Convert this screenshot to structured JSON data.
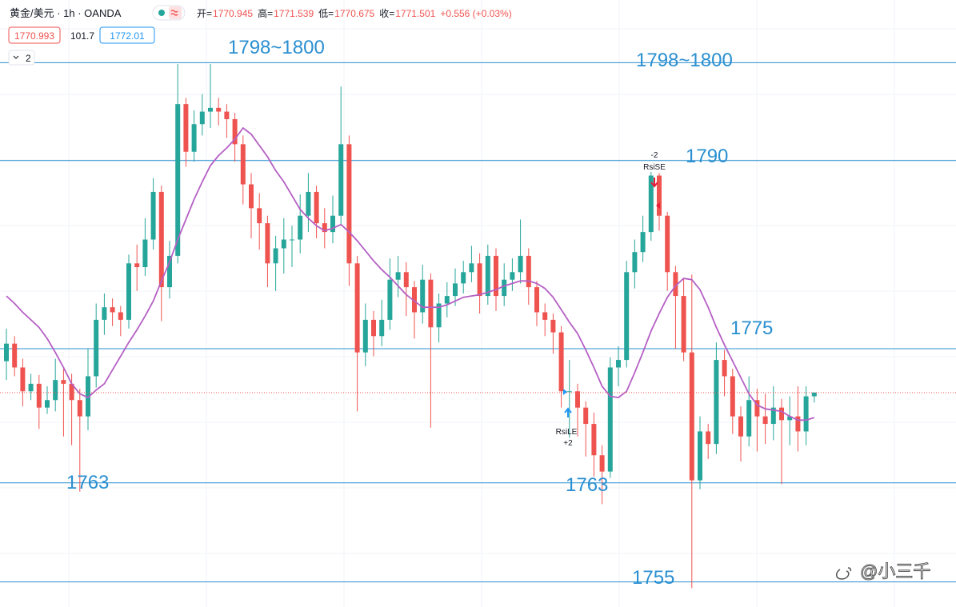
{
  "header": {
    "symbol": "黄金/美元 · 1h · OANDA",
    "ohlc": [
      {
        "label": "开=",
        "value": 1770.945
      },
      {
        "label": "高=",
        "value": 1771.539
      },
      {
        "label": "低=",
        "value": 1770.675
      },
      {
        "label": "收=",
        "value": 1771.501
      }
    ],
    "change": "+0.556 (+0.03%)",
    "bid": 1770.993,
    "spread": 101.7,
    "ask": 1772.01,
    "indicators_count": 2
  },
  "chart_data": {
    "type": "candlestick",
    "ylim": [
      1754.4,
      1802.8
    ],
    "up_color": "#26a69a",
    "down_color": "#ef5350",
    "series": {
      "open": [
        1774.0,
        1775.4,
        1773.5,
        1771.6,
        1772.2,
        1770.3,
        1770.9,
        1772.5,
        1772.2,
        1770.9,
        1769.6,
        1772.8,
        1777.3,
        1778.3,
        1777.9,
        1777.3,
        1781.8,
        1781.5,
        1783.7,
        1787.5,
        1779.9,
        1782.4,
        1794.5,
        1790.7,
        1792.9,
        1793.9,
        1794.2,
        1793.9,
        1793.3,
        1791.3,
        1788.1,
        1786.2,
        1785.0,
        1781.8,
        1783.0,
        1783.7,
        1783.7,
        1785.6,
        1787.5,
        1785.0,
        1784.3,
        1785.6,
        1791.3,
        1781.8,
        1774.7,
        1777.3,
        1776.0,
        1777.3,
        1780.5,
        1781.1,
        1779.9,
        1777.9,
        1780.5,
        1776.7,
        1778.6,
        1779.2,
        1780.2,
        1781.1,
        1781.8,
        1779.2,
        1782.4,
        1779.2,
        1780.5,
        1781.1,
        1782.4,
        1779.9,
        1777.9,
        1777.3,
        1776.3,
        1771.6,
        1771.6,
        1770.3,
        1769.0,
        1766.5,
        1765.2,
        1773.5,
        1774.1,
        1781.1,
        1782.7,
        1784.3,
        1788.8,
        1785.6,
        1781.1,
        1779.2,
        1774.7,
        1764.5,
        1768.4,
        1767.4,
        1774.1,
        1772.8,
        1769.6,
        1768.0,
        1770.9,
        1769.6,
        1769.0,
        1770.3,
        1769.3,
        1769.6,
        1768.4,
        1771.2
      ],
      "high": [
        1776.6,
        1776.0,
        1774.2,
        1773.0,
        1772.9,
        1772.0,
        1774.2,
        1773.4,
        1773.0,
        1771.8,
        1775.0,
        1778.6,
        1779.4,
        1779.0,
        1778.4,
        1782.5,
        1783.3,
        1785.4,
        1788.6,
        1788.0,
        1783.6,
        1797.7,
        1795.0,
        1794.0,
        1795.3,
        1797.7,
        1795.0,
        1794.5,
        1793.8,
        1792.0,
        1789.0,
        1787.4,
        1785.6,
        1784.0,
        1785.4,
        1784.8,
        1787.3,
        1789.0,
        1788.0,
        1786.2,
        1787.2,
        1795.9,
        1792.0,
        1782.4,
        1778.6,
        1778.0,
        1778.9,
        1782.2,
        1782.4,
        1781.9,
        1780.4,
        1781.7,
        1781.0,
        1779.4,
        1780.3,
        1781.4,
        1782.0,
        1783.2,
        1782.6,
        1783.3,
        1783.0,
        1781.8,
        1782.2,
        1785.3,
        1783.0,
        1780.4,
        1778.6,
        1777.8,
        1776.8,
        1774.1,
        1772.2,
        1770.8,
        1769.9,
        1767.3,
        1774.3,
        1775.2,
        1782.0,
        1783.7,
        1785.6,
        1789.1,
        1789.0,
        1785.9,
        1781.6,
        1780.6,
        1780.9,
        1769.6,
        1769.0,
        1775.5,
        1774.9,
        1773.4,
        1770.4,
        1772.8,
        1771.8,
        1771.4,
        1772.0,
        1771.0,
        1771.2,
        1772.0,
        1772.0,
        1771.5
      ],
      "low": [
        1772.5,
        1772.8,
        1770.4,
        1770.9,
        1768.6,
        1769.8,
        1770.0,
        1768.0,
        1767.3,
        1763.6,
        1768.5,
        1771.9,
        1776.1,
        1776.8,
        1776.0,
        1776.6,
        1779.6,
        1780.8,
        1782.9,
        1777.2,
        1779.0,
        1781.8,
        1789.5,
        1789.9,
        1792.0,
        1792.6,
        1792.8,
        1791.8,
        1789.9,
        1786.5,
        1783.8,
        1782.9,
        1779.9,
        1779.6,
        1781.0,
        1781.5,
        1782.6,
        1784.3,
        1783.8,
        1783.0,
        1783.4,
        1784.9,
        1780.0,
        1770.0,
        1773.6,
        1774.4,
        1775.2,
        1776.5,
        1779.1,
        1777.6,
        1775.8,
        1777.0,
        1768.7,
        1775.5,
        1777.5,
        1778.4,
        1779.4,
        1780.3,
        1777.8,
        1778.5,
        1778.0,
        1778.4,
        1779.6,
        1780.2,
        1778.5,
        1776.8,
        1776.0,
        1774.6,
        1770.3,
        1767.9,
        1768.0,
        1766.4,
        1764.8,
        1762.6,
        1764.7,
        1772.0,
        1773.5,
        1779.8,
        1781.9,
        1783.6,
        1784.4,
        1779.6,
        1775.0,
        1774.0,
        1755.9,
        1763.8,
        1766.2,
        1766.6,
        1771.2,
        1768.2,
        1766.0,
        1767.2,
        1766.8,
        1767.4,
        1767.7,
        1764.2,
        1767.3,
        1766.8,
        1767.3,
        1770.7
      ],
      "close": [
        1775.4,
        1773.5,
        1771.6,
        1772.2,
        1770.3,
        1770.9,
        1772.5,
        1772.2,
        1770.9,
        1769.6,
        1772.8,
        1777.3,
        1778.3,
        1777.9,
        1777.3,
        1781.8,
        1781.5,
        1783.7,
        1787.5,
        1779.9,
        1782.4,
        1794.5,
        1790.7,
        1792.9,
        1793.9,
        1794.2,
        1793.9,
        1793.3,
        1791.3,
        1788.1,
        1786.2,
        1785.0,
        1781.8,
        1783.0,
        1783.7,
        1783.7,
        1785.6,
        1787.5,
        1785.0,
        1784.3,
        1785.6,
        1791.3,
        1781.8,
        1774.7,
        1777.3,
        1776.0,
        1777.3,
        1780.5,
        1781.1,
        1779.9,
        1777.9,
        1780.5,
        1776.7,
        1778.6,
        1779.2,
        1780.2,
        1781.1,
        1781.8,
        1779.2,
        1782.4,
        1779.2,
        1780.5,
        1781.1,
        1782.4,
        1779.9,
        1777.9,
        1777.3,
        1776.3,
        1771.6,
        1771.6,
        1770.3,
        1769.0,
        1766.5,
        1765.2,
        1773.5,
        1774.1,
        1781.1,
        1782.7,
        1784.3,
        1788.8,
        1785.6,
        1781.1,
        1779.2,
        1774.7,
        1764.5,
        1768.4,
        1767.4,
        1774.1,
        1772.8,
        1769.6,
        1768.0,
        1770.9,
        1769.6,
        1769.0,
        1770.3,
        1769.3,
        1769.6,
        1768.4,
        1771.2,
        1771.5
      ]
    },
    "moving_average": {
      "color": "#b55fc4",
      "values": [
        1779.2,
        1778.6,
        1777.9,
        1777.3,
        1776.7,
        1775.8,
        1774.7,
        1773.5,
        1772.2,
        1771.4,
        1771.1,
        1771.7,
        1772.2,
        1773.3,
        1774.4,
        1775.5,
        1776.5,
        1777.6,
        1778.8,
        1780.4,
        1781.9,
        1783.7,
        1785.3,
        1786.9,
        1788.3,
        1789.6,
        1790.4,
        1791.0,
        1791.7,
        1792.6,
        1792.1,
        1791.2,
        1790.3,
        1789.2,
        1788.3,
        1787.2,
        1786.1,
        1785.4,
        1784.8,
        1784.4,
        1784.6,
        1784.9,
        1784.3,
        1783.6,
        1782.8,
        1782.0,
        1781.3,
        1780.7,
        1780.0,
        1779.3,
        1778.8,
        1778.3,
        1778.3,
        1778.3,
        1778.5,
        1778.8,
        1779.1,
        1779.2,
        1779.3,
        1779.5,
        1779.7,
        1780.0,
        1780.2,
        1780.4,
        1780.4,
        1780.2,
        1779.8,
        1779.1,
        1778.1,
        1777.1,
        1776.2,
        1774.9,
        1773.5,
        1772.0,
        1771.2,
        1771.1,
        1771.6,
        1773.1,
        1774.7,
        1776.4,
        1777.8,
        1779.1,
        1780.0,
        1780.6,
        1780.5,
        1779.7,
        1778.3,
        1776.7,
        1775.3,
        1774.0,
        1772.7,
        1771.4,
        1770.5,
        1770.2,
        1770.1,
        1770.0,
        1769.6,
        1769.3,
        1769.3,
        1769.5
      ]
    },
    "levels": [
      1797.8,
      1790,
      1775,
      1764.3,
      1756.4
    ],
    "level_color": "#2a8fd0",
    "annotations": [
      "1798~1800",
      "1798~1800",
      "1790",
      "1775",
      "1763",
      "1763",
      "1755"
    ],
    "signals": [
      {
        "name": "RsiSE",
        "amount": "-2"
      },
      {
        "name": "RsiLE",
        "amount": "+2"
      }
    ]
  },
  "watermark": "@小三千"
}
